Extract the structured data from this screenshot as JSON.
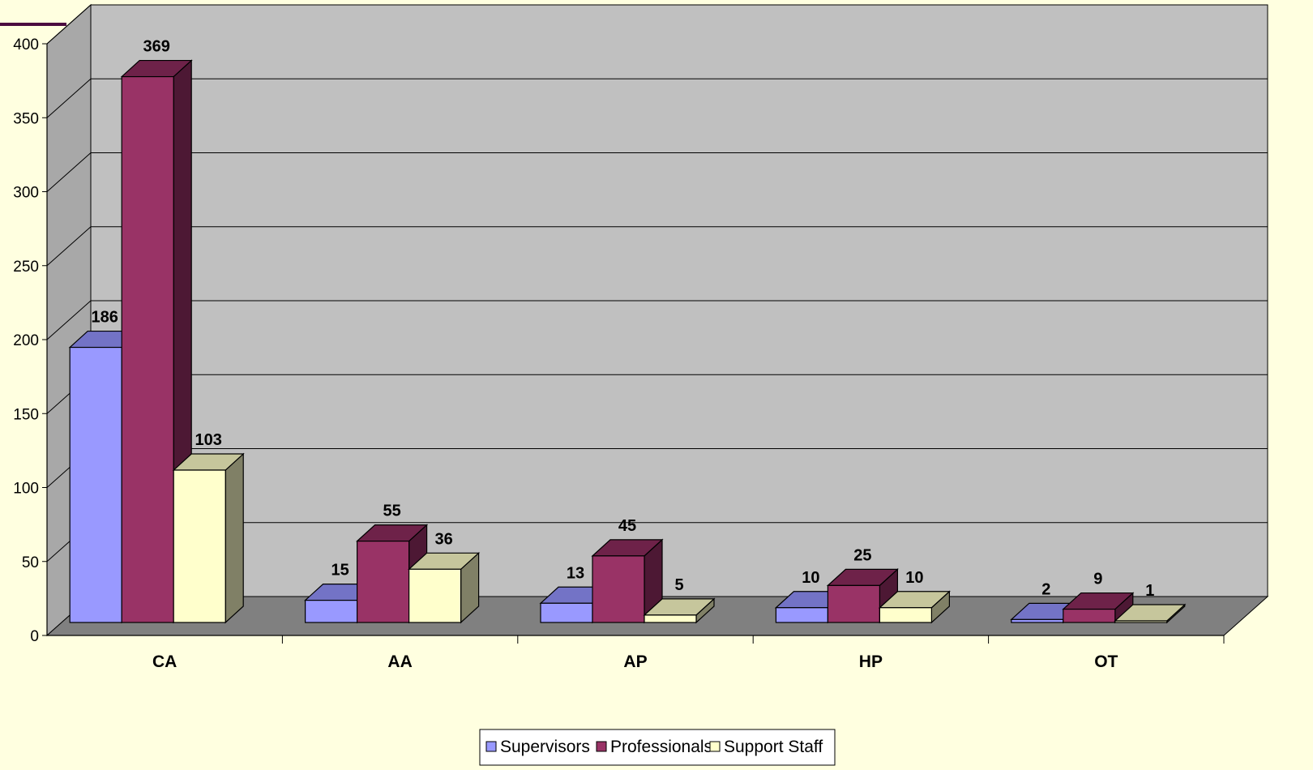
{
  "chart_data": {
    "type": "bar",
    "categories": [
      "CA",
      "AA",
      "AP",
      "HP",
      "OT"
    ],
    "series": [
      {
        "name": "Supervisors",
        "values": [
          186,
          15,
          13,
          10,
          2
        ]
      },
      {
        "name": "Professionals",
        "values": [
          369,
          55,
          45,
          25,
          9
        ]
      },
      {
        "name": "Support Staff",
        "values": [
          103,
          36,
          5,
          10,
          1
        ]
      }
    ],
    "ylim": [
      0,
      400
    ],
    "yticks": [
      0,
      50,
      100,
      150,
      200,
      250,
      300,
      350,
      400
    ],
    "title": "",
    "xlabel": "",
    "ylabel": "",
    "grid": true,
    "legend_position": "bottom",
    "three_d": true
  },
  "colors": {
    "background": "#ffffe0",
    "back_wall": "#c0c0c0",
    "side_wall": "#a8a8a8",
    "floor": "#808080",
    "gridline": "#000000",
    "accent_bar": "#4b0a3f",
    "series": [
      {
        "front": "#9999ff",
        "top": "#7373c6",
        "side": "#5a5aa6"
      },
      {
        "front": "#993366",
        "top": "#6e2249",
        "side": "#4d1834"
      },
      {
        "front": "#ffffcc",
        "top": "#c6c69c",
        "side": "#808066"
      }
    ]
  }
}
